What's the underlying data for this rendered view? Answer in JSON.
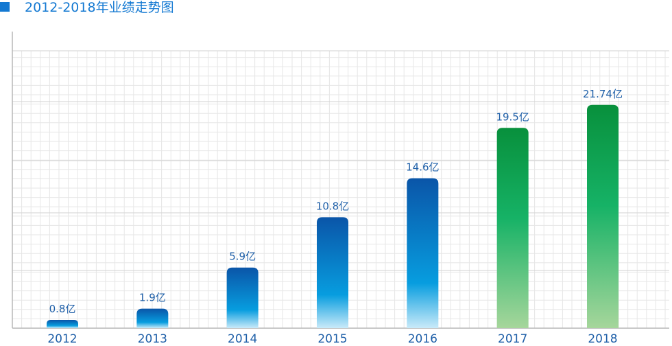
{
  "page": {
    "title": "2012-2018年业绩走势图"
  },
  "colors": {
    "accent": "#1479d2",
    "text": "#1e5fa8",
    "grid": "#e6e6e6",
    "axis": "#b7b7b7",
    "blue_top": "#0a55a8",
    "blue_mid": "#079ddf",
    "blue_bottom": "#c9eaf9",
    "green_top": "#08903c",
    "green_mid": "#16b266",
    "green_bottom": "#a6d69b"
  },
  "chart_data": {
    "type": "bar",
    "title": "2012-2018年业绩走势图",
    "categories": [
      "2012",
      "2013",
      "2014",
      "2015",
      "2016",
      "2017",
      "2018"
    ],
    "values": [
      0.8,
      1.9,
      5.9,
      10.8,
      14.6,
      19.5,
      21.74
    ],
    "value_labels": [
      "0.8亿",
      "1.9亿",
      "5.9亿",
      "10.8亿",
      "14.6亿",
      "19.5亿",
      "21.74亿"
    ],
    "bar_colors": [
      "blue",
      "blue",
      "blue",
      "blue",
      "blue",
      "green",
      "green"
    ],
    "ylim": [
      0,
      25
    ],
    "grid": true,
    "xlabel": "",
    "ylabel": ""
  }
}
